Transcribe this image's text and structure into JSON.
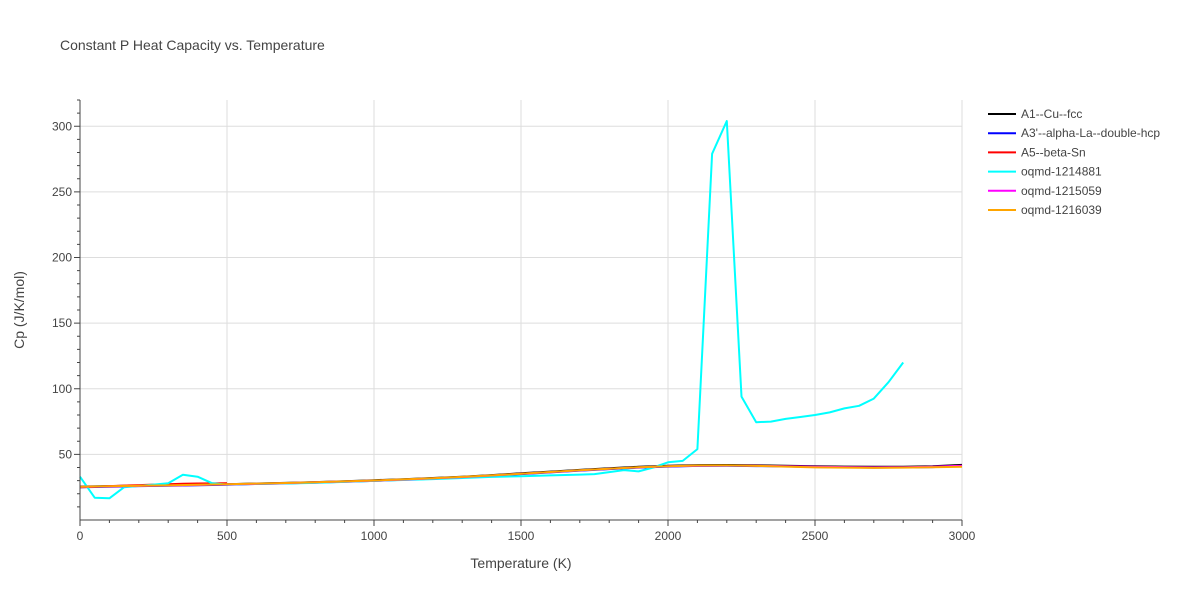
{
  "chart_data": {
    "type": "line",
    "title": "Constant P Heat Capacity vs. Temperature",
    "xlabel": "Temperature (K)",
    "ylabel": "Cp (J/K/mol)",
    "xlim": [
      0,
      3000
    ],
    "ylim": [
      0,
      320
    ],
    "xticks": [
      0,
      500,
      1000,
      1500,
      2000,
      2500,
      3000
    ],
    "yticks": [
      50,
      100,
      150,
      200,
      250,
      300
    ],
    "grid": true,
    "legend_position": "top-right",
    "series": [
      {
        "name": "A1--Cu--fcc",
        "color": "#000000",
        "x": [
          0,
          100,
          200,
          300,
          400,
          500,
          600,
          700,
          800,
          900,
          1000,
          1100,
          1200,
          1300,
          1400,
          1500,
          1600,
          1700,
          1800,
          1900,
          2000,
          2100,
          2200,
          2300,
          2400,
          2500,
          2600,
          2700,
          2800,
          2900,
          3000
        ],
        "y": [
          25.5,
          25.8,
          26.2,
          26.5,
          26.9,
          27.3,
          27.8,
          28.3,
          28.9,
          29.5,
          30.3,
          31.1,
          32.0,
          33.0,
          34.2,
          35.6,
          36.9,
          38.2,
          39.4,
          40.5,
          41.3,
          41.8,
          41.9,
          41.7,
          41.4,
          41.0,
          40.7,
          40.5,
          40.6,
          40.9,
          42.0
        ]
      },
      {
        "name": "A3'--alpha-La--double-hcp",
        "color": "#0000ff",
        "x": [
          0,
          100,
          200,
          300,
          400,
          500,
          600,
          700,
          800,
          900,
          1000,
          1100,
          1200,
          1300,
          1400,
          1500,
          1600,
          1700,
          1800,
          1900,
          2000,
          2100,
          2200,
          2300,
          2400,
          2500,
          2600,
          2700,
          2800,
          2900,
          3000
        ],
        "y": [
          25.0,
          25.4,
          25.8,
          26.1,
          26.5,
          26.9,
          27.4,
          27.9,
          28.5,
          29.1,
          29.8,
          30.6,
          31.5,
          32.5,
          33.7,
          35.0,
          36.3,
          37.6,
          38.8,
          39.9,
          40.7,
          41.2,
          41.3,
          41.1,
          40.8,
          40.4,
          40.1,
          39.9,
          40.0,
          40.3,
          41.2
        ]
      },
      {
        "name": "A5--beta-Sn",
        "color": "#ff0000",
        "x": [
          0,
          50,
          100,
          150,
          200,
          250,
          300,
          350,
          400,
          450,
          500
        ],
        "y": [
          25.0,
          25.3,
          25.8,
          26.2,
          26.6,
          27.0,
          27.3,
          27.6,
          27.8,
          27.9,
          28.0
        ]
      },
      {
        "name": "oqmd-1214881",
        "color": "#00ffff",
        "x": [
          0,
          50,
          100,
          150,
          200,
          250,
          300,
          350,
          400,
          450,
          500,
          600,
          700,
          800,
          900,
          1000,
          1100,
          1200,
          1300,
          1400,
          1500,
          1600,
          1700,
          1750,
          1800,
          1850,
          1900,
          1950,
          2000,
          2050,
          2100,
          2150,
          2200,
          2250,
          2300,
          2350,
          2400,
          2450,
          2500,
          2550,
          2600,
          2650,
          2700,
          2750,
          2800
        ],
        "y": [
          33,
          17,
          16.5,
          25,
          26,
          27,
          28,
          34.5,
          33,
          28,
          27,
          27.5,
          27.8,
          28.3,
          29,
          29.8,
          30.5,
          31.2,
          32,
          32.8,
          33.4,
          34,
          34.6,
          35,
          36.5,
          38,
          37,
          40,
          44,
          45,
          54,
          279,
          304,
          94,
          74.5,
          75,
          77,
          78.5,
          80,
          82,
          85,
          87,
          92.5,
          105,
          120
        ]
      },
      {
        "name": "oqmd-1215059",
        "color": "#ff00ff",
        "x": [
          0,
          100,
          200,
          300,
          400,
          500,
          600,
          700,
          800,
          900,
          1000,
          1100,
          1200,
          1300,
          1400,
          1500,
          1600,
          1700,
          1800,
          1900,
          2000,
          2100,
          2200,
          2300,
          2400,
          2500,
          2600,
          2700,
          2800,
          2900,
          3000
        ],
        "y": [
          25.2,
          25.6,
          26.0,
          26.3,
          26.7,
          27.1,
          27.6,
          28.1,
          28.7,
          29.3,
          30.0,
          30.8,
          31.7,
          32.7,
          33.9,
          35.2,
          36.5,
          37.8,
          39.0,
          40.1,
          40.9,
          41.4,
          41.5,
          41.3,
          41.0,
          40.6,
          40.3,
          40.1,
          40.2,
          40.5,
          41.3
        ]
      },
      {
        "name": "oqmd-1216039",
        "color": "#ffa500",
        "x": [
          0,
          100,
          200,
          300,
          400,
          500,
          600,
          700,
          800,
          900,
          1000,
          1100,
          1200,
          1300,
          1400,
          1500,
          1600,
          1700,
          1800,
          1900,
          2000,
          2100,
          2200,
          2300,
          2400,
          2500,
          2600,
          2700,
          2800,
          2900,
          3000
        ],
        "y": [
          25.3,
          25.7,
          26.1,
          26.4,
          26.8,
          27.2,
          27.7,
          28.2,
          28.8,
          29.4,
          30.1,
          30.9,
          31.8,
          32.8,
          34.0,
          35.3,
          36.6,
          37.9,
          39.1,
          40.2,
          41.0,
          41.5,
          41.6,
          41.2,
          40.7,
          40.1,
          39.9,
          39.7,
          39.9,
          40.2,
          40.6
        ]
      }
    ]
  }
}
